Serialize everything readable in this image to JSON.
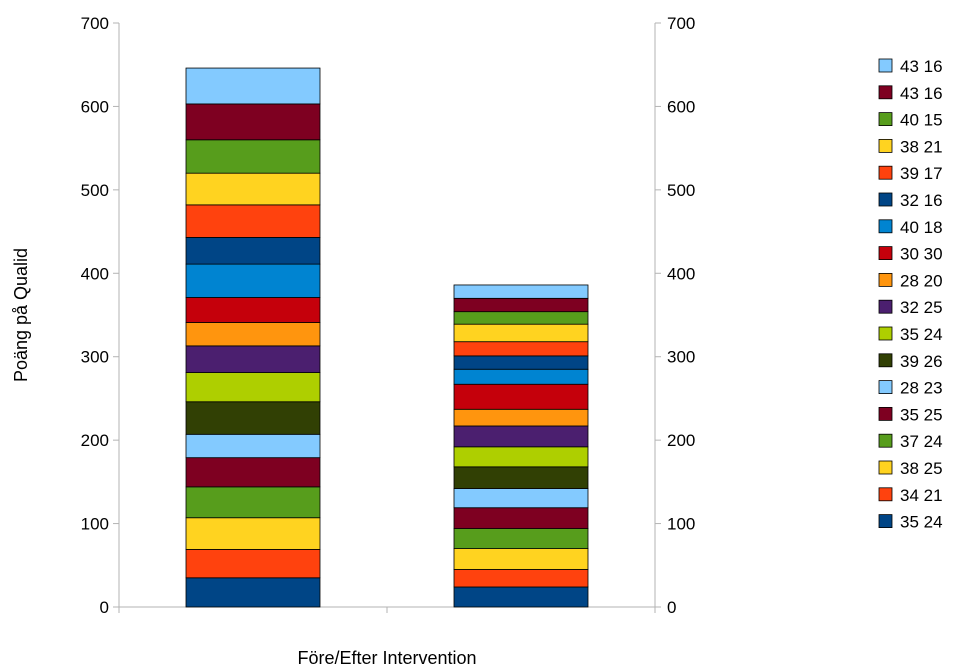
{
  "chart_data": {
    "type": "bar",
    "stacked": true,
    "xlabel": "Före/Efter Intervention",
    "ylabel": "Poäng på Qualid",
    "ylim": [
      0,
      700
    ],
    "yticks": [
      0,
      100,
      200,
      300,
      400,
      500,
      600,
      700
    ],
    "secondary_y_axis": true,
    "grid": false,
    "legend_position": "right",
    "categories": [
      "Före",
      "Efter"
    ],
    "series": [
      {
        "name": "35 24",
        "color": "#004586",
        "values": [
          35,
          24
        ]
      },
      {
        "name": "34 21",
        "color": "#ff420e",
        "values": [
          34,
          21
        ]
      },
      {
        "name": "38 25",
        "color": "#ffd320",
        "values": [
          38,
          25
        ]
      },
      {
        "name": "37 24",
        "color": "#579d1c",
        "values": [
          37,
          24
        ]
      },
      {
        "name": "35 25",
        "color": "#7e0021",
        "values": [
          35,
          25
        ]
      },
      {
        "name": "28 23",
        "color": "#83caff",
        "values": [
          28,
          23
        ]
      },
      {
        "name": "39 26",
        "color": "#314004",
        "values": [
          39,
          26
        ]
      },
      {
        "name": "35 24",
        "color": "#aecf00",
        "values": [
          35,
          24
        ]
      },
      {
        "name": "32 25",
        "color": "#4b1f6f",
        "values": [
          32,
          25
        ]
      },
      {
        "name": "28 20",
        "color": "#ff950e",
        "values": [
          28,
          20
        ]
      },
      {
        "name": "30 30",
        "color": "#c5000b",
        "values": [
          30,
          30
        ]
      },
      {
        "name": "40 18",
        "color": "#0084d1",
        "values": [
          40,
          18
        ]
      },
      {
        "name": "32 16",
        "color": "#004586",
        "values": [
          32,
          16
        ]
      },
      {
        "name": "39 17",
        "color": "#ff420e",
        "values": [
          39,
          17
        ]
      },
      {
        "name": "38 21",
        "color": "#ffd320",
        "values": [
          38,
          21
        ]
      },
      {
        "name": "40 15",
        "color": "#579d1c",
        "values": [
          40,
          15
        ]
      },
      {
        "name": "43 16",
        "color": "#7e0021",
        "values": [
          43,
          16
        ]
      },
      {
        "name": "43 16",
        "color": "#83caff",
        "values": [
          43,
          16
        ]
      }
    ]
  }
}
